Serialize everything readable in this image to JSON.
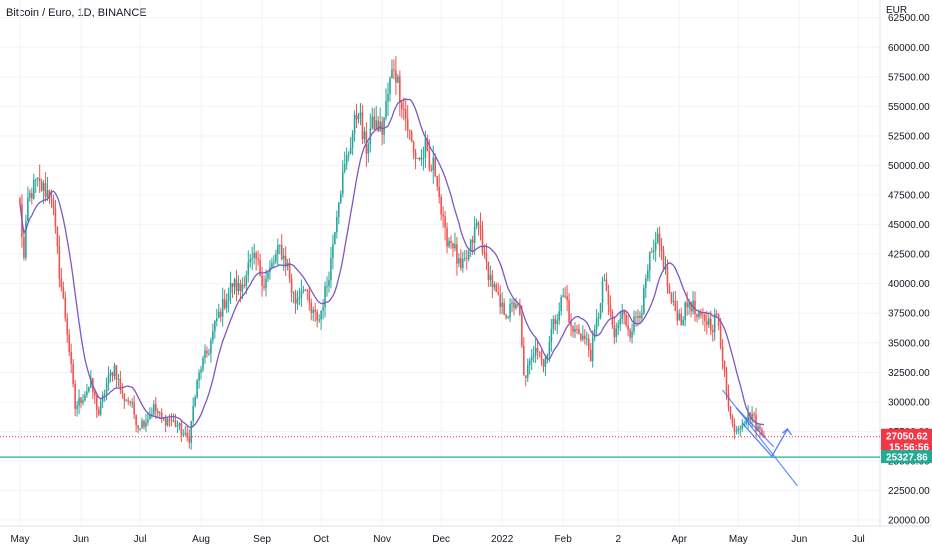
{
  "header": {
    "title": "Bitcoin / Euro, 1D, BINANCE"
  },
  "chart_data": {
    "type": "candlestick",
    "currency_label": "EUR",
    "ylim": [
      19500,
      64000
    ],
    "y_ticks": [
      20000,
      22500,
      25000,
      27500,
      30000,
      32500,
      35000,
      37500,
      40000,
      42500,
      45000,
      47500,
      50000,
      52500,
      55000,
      57500,
      60000,
      62500
    ],
    "y_tick_labels": [
      "20000.00",
      "22500.00",
      "25000.00",
      "27500.00",
      "30000.00",
      "32500.00",
      "35000.00",
      "37500.00",
      "40000.00",
      "42500.00",
      "45000.00",
      "47500.00",
      "50000.00",
      "52500.00",
      "55000.00",
      "57500.00",
      "60000.00",
      "62500.00"
    ],
    "x_labels": [
      "May",
      "Jun",
      "Jul",
      "Aug",
      "Sep",
      "Oct",
      "Nov",
      "Dec",
      "2022",
      "Feb",
      "2",
      "Apr",
      "May",
      "Jun",
      "Jul"
    ],
    "x_label_days": [
      0,
      31,
      61,
      92,
      123,
      153,
      184,
      214,
      245,
      276,
      304,
      335,
      365,
      396,
      426
    ],
    "total_days": 435,
    "current_price": {
      "value": 27050.62,
      "label": "27050.62",
      "countdown": "15:56:56",
      "color": "#f23645"
    },
    "support_line": {
      "value": 25327.86,
      "label": "25327.86",
      "color": "#22ab94"
    },
    "colors": {
      "up": "#26a69a",
      "down": "#ef5350",
      "ma": "#7e57c2"
    },
    "closes_anchor": [
      [
        0,
        46500
      ],
      [
        2,
        42000
      ],
      [
        4,
        47000
      ],
      [
        8,
        48500
      ],
      [
        12,
        48000
      ],
      [
        16,
        47500
      ],
      [
        20,
        41000
      ],
      [
        24,
        36000
      ],
      [
        28,
        29500
      ],
      [
        32,
        30500
      ],
      [
        36,
        31500
      ],
      [
        40,
        29000
      ],
      [
        44,
        31500
      ],
      [
        48,
        33000
      ],
      [
        52,
        30500
      ],
      [
        56,
        30000
      ],
      [
        60,
        28000
      ],
      [
        64,
        28500
      ],
      [
        68,
        29500
      ],
      [
        72,
        28500
      ],
      [
        76,
        28500
      ],
      [
        80,
        28000
      ],
      [
        84,
        27000
      ],
      [
        86,
        27000
      ],
      [
        88,
        29500
      ],
      [
        90,
        31500
      ],
      [
        92,
        33000
      ],
      [
        96,
        34500
      ],
      [
        100,
        37000
      ],
      [
        104,
        38500
      ],
      [
        108,
        40000
      ],
      [
        112,
        39500
      ],
      [
        116,
        41500
      ],
      [
        120,
        42000
      ],
      [
        124,
        40000
      ],
      [
        128,
        41500
      ],
      [
        132,
        43000
      ],
      [
        136,
        41500
      ],
      [
        138,
        39500
      ],
      [
        140,
        38500
      ],
      [
        144,
        40000
      ],
      [
        148,
        37500
      ],
      [
        152,
        37000
      ],
      [
        156,
        40000
      ],
      [
        158,
        42000
      ],
      [
        160,
        45000
      ],
      [
        162,
        47500
      ],
      [
        164,
        49000
      ],
      [
        168,
        52000
      ],
      [
        170,
        53500
      ],
      [
        172,
        55000
      ],
      [
        174,
        52500
      ],
      [
        176,
        51500
      ],
      [
        178,
        53000
      ],
      [
        180,
        53500
      ],
      [
        184,
        53000
      ],
      [
        188,
        57000
      ],
      [
        190,
        58500
      ],
      [
        192,
        57000
      ],
      [
        196,
        54000
      ],
      [
        200,
        51000
      ],
      [
        204,
        50500
      ],
      [
        206,
        51500
      ],
      [
        208,
        49500
      ],
      [
        210,
        50000
      ],
      [
        212,
        49000
      ],
      [
        214,
        46000
      ],
      [
        216,
        44000
      ],
      [
        220,
        43500
      ],
      [
        222,
        42000
      ],
      [
        224,
        41000
      ],
      [
        228,
        42500
      ],
      [
        232,
        45000
      ],
      [
        234,
        44500
      ],
      [
        236,
        42000
      ],
      [
        240,
        40000
      ],
      [
        244,
        38000
      ],
      [
        248,
        37500
      ],
      [
        252,
        38500
      ],
      [
        254,
        37000
      ],
      [
        256,
        32000
      ],
      [
        260,
        33500
      ],
      [
        262,
        35000
      ],
      [
        264,
        34500
      ],
      [
        266,
        33000
      ],
      [
        270,
        36000
      ],
      [
        274,
        38000
      ],
      [
        276,
        39000
      ],
      [
        278,
        38500
      ],
      [
        280,
        36000
      ],
      [
        284,
        36000
      ],
      [
        288,
        35000
      ],
      [
        290,
        34000
      ],
      [
        294,
        37500
      ],
      [
        296,
        40000
      ],
      [
        298,
        39500
      ],
      [
        300,
        37000
      ],
      [
        302,
        35500
      ],
      [
        306,
        37500
      ],
      [
        310,
        36000
      ],
      [
        314,
        37500
      ],
      [
        316,
        38000
      ],
      [
        318,
        40000
      ],
      [
        320,
        42000
      ],
      [
        322,
        42500
      ],
      [
        324,
        43500
      ],
      [
        326,
        42500
      ],
      [
        328,
        41000
      ],
      [
        330,
        39000
      ],
      [
        332,
        38000
      ],
      [
        336,
        37000
      ],
      [
        340,
        38500
      ],
      [
        342,
        38000
      ],
      [
        344,
        37000
      ],
      [
        348,
        37000
      ],
      [
        352,
        36500
      ],
      [
        354,
        37500
      ],
      [
        356,
        34500
      ],
      [
        358,
        33000
      ],
      [
        360,
        29500
      ],
      [
        362,
        28000
      ],
      [
        364,
        27800
      ],
      [
        368,
        28500
      ],
      [
        372,
        29000
      ],
      [
        374,
        28000
      ],
      [
        376,
        27500
      ],
      [
        378,
        27050
      ]
    ],
    "ma_window": 14,
    "trendlines": [
      {
        "from": [
          357,
          31000
        ],
        "to": [
          395,
          22900
        ]
      },
      {
        "from": [
          364,
          29500
        ],
        "to": [
          383,
          26200
        ]
      }
    ],
    "projection_arrow": {
      "points": [
        [
          367,
          28200
        ],
        [
          382,
          25400
        ],
        [
          390,
          27700
        ]
      ]
    }
  }
}
